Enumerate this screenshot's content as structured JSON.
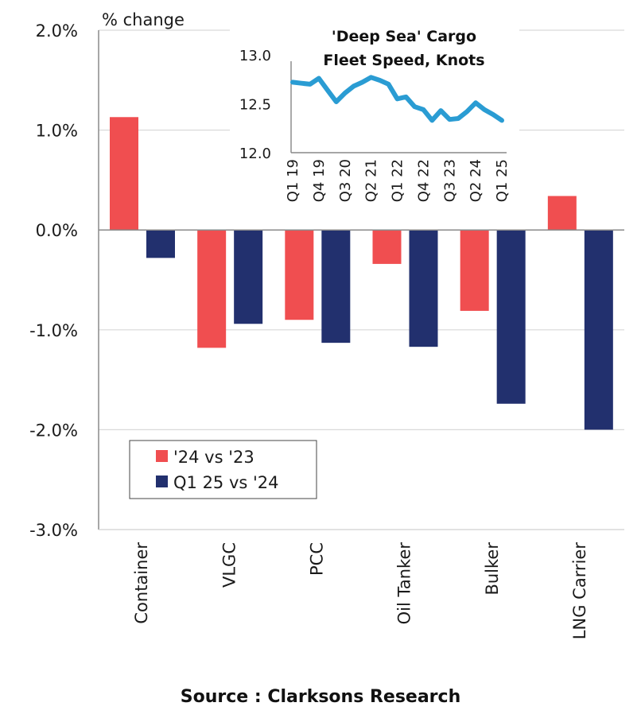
{
  "chart_data": {
    "type": "bar",
    "ytitle": "% change",
    "ylim": [
      -3.0,
      2.0
    ],
    "yticks": [
      2.0,
      1.0,
      0.0,
      -1.0,
      -2.0,
      -3.0
    ],
    "ytick_labels": [
      "2.0%",
      "1.0%",
      "0.0%",
      "-1.0%",
      "-2.0%",
      "-3.0%"
    ],
    "grid": true,
    "categories": [
      "Container",
      "VLGC",
      "PCC",
      "Oil Tanker",
      "Bulker",
      "LNG Carrier"
    ],
    "series": [
      {
        "name": "'24 vs '23",
        "color": "#F04E50",
        "values": [
          1.13,
          -1.18,
          -0.9,
          -0.34,
          -0.81,
          0.34
        ]
      },
      {
        "name": "Q1 25 vs '24",
        "color": "#22306E",
        "values": [
          -0.28,
          -0.94,
          -1.13,
          -1.17,
          -1.74,
          -2.0
        ]
      }
    ],
    "legend": {
      "position": "bottom-left"
    },
    "inset": {
      "type": "line",
      "title_lines": [
        "'Deep Sea' Cargo",
        "Fleet Speed, Knots"
      ],
      "ylim": [
        12.0,
        13.0
      ],
      "yticks": [
        13.0,
        12.5,
        12.0
      ],
      "ytick_labels": [
        "13.0",
        "12.5",
        "12.0"
      ],
      "xtick_labels": [
        "Q1 19",
        "Q4 19",
        "Q3 20",
        "Q2 21",
        "Q1 22",
        "Q4 22",
        "Q3 23",
        "Q2 24",
        "Q1 25"
      ],
      "x": [
        "Q1 19",
        "Q2 19",
        "Q3 19",
        "Q4 19",
        "Q1 20",
        "Q2 20",
        "Q3 20",
        "Q4 20",
        "Q1 21",
        "Q2 21",
        "Q3 21",
        "Q4 21",
        "Q1 22",
        "Q2 22",
        "Q3 22",
        "Q4 22",
        "Q1 23",
        "Q2 23",
        "Q3 23",
        "Q4 23",
        "Q1 24",
        "Q2 24",
        "Q3 24",
        "Q4 24",
        "Q1 25"
      ],
      "color": "#2A9CD3",
      "values": [
        12.72,
        12.71,
        12.7,
        12.76,
        12.64,
        12.52,
        12.61,
        12.68,
        12.72,
        12.77,
        12.74,
        12.7,
        12.55,
        12.57,
        12.47,
        12.44,
        12.33,
        12.43,
        12.34,
        12.35,
        12.42,
        12.51,
        12.44,
        12.39,
        12.33
      ]
    }
  },
  "footer": {
    "source": "Source : Clarksons Research"
  }
}
